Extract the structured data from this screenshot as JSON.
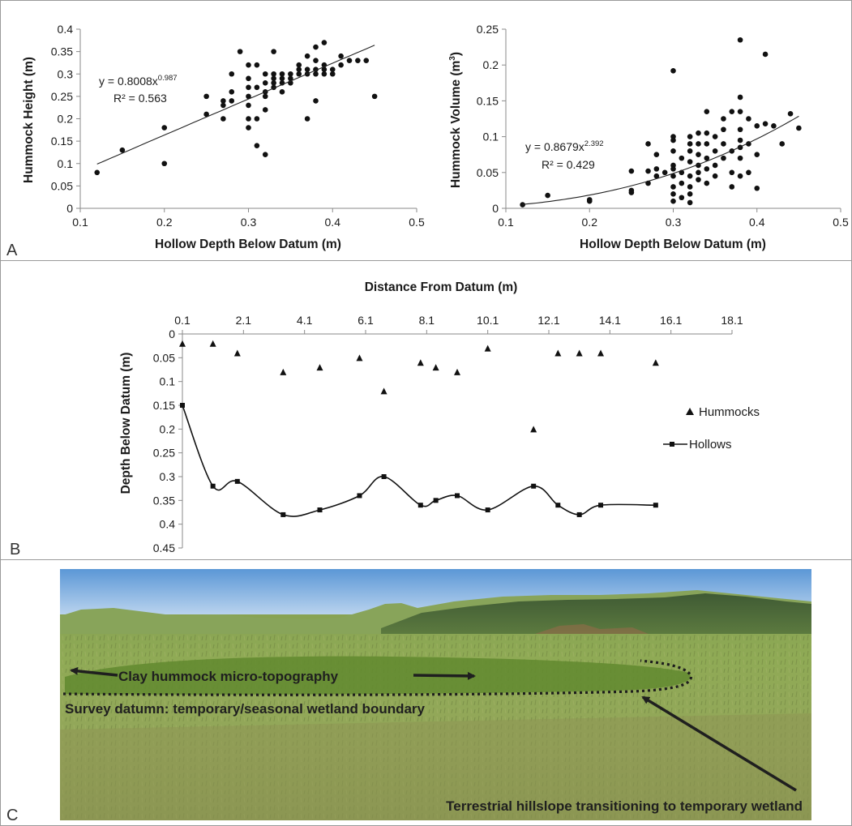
{
  "panels": {
    "a_label": "A",
    "b_label": "B",
    "c_label": "C"
  },
  "chart_data": [
    {
      "type": "scatter",
      "panel": "A",
      "xlabel": "Hollow Depth Below Datum (m)",
      "ylabel": "Hummock Height (m)",
      "xlim": [
        0.1,
        0.5
      ],
      "ylim": [
        0,
        0.4
      ],
      "xticks": [
        "0.1",
        "0.2",
        "0.3",
        "0.4",
        "0.5"
      ],
      "yticks": [
        "0",
        "0.05",
        "0.1",
        "0.15",
        "0.2",
        "0.25",
        "0.3",
        "0.35",
        "0.4"
      ],
      "trendline": {
        "a": 0.8008,
        "b": 0.987,
        "equation_lhs": "y = 0.8008x",
        "equation_exp": "0.987",
        "r2_text": "R² = 0.563"
      },
      "points": [
        [
          0.12,
          0.08
        ],
        [
          0.15,
          0.13
        ],
        [
          0.2,
          0.18
        ],
        [
          0.2,
          0.1
        ],
        [
          0.25,
          0.25
        ],
        [
          0.25,
          0.21
        ],
        [
          0.27,
          0.24
        ],
        [
          0.27,
          0.23
        ],
        [
          0.27,
          0.2
        ],
        [
          0.28,
          0.3
        ],
        [
          0.28,
          0.26
        ],
        [
          0.28,
          0.24
        ],
        [
          0.29,
          0.35
        ],
        [
          0.3,
          0.32
        ],
        [
          0.3,
          0.29
        ],
        [
          0.3,
          0.27
        ],
        [
          0.3,
          0.25
        ],
        [
          0.3,
          0.23
        ],
        [
          0.3,
          0.2
        ],
        [
          0.3,
          0.18
        ],
        [
          0.31,
          0.32
        ],
        [
          0.31,
          0.27
        ],
        [
          0.31,
          0.2
        ],
        [
          0.31,
          0.14
        ],
        [
          0.32,
          0.3
        ],
        [
          0.32,
          0.28
        ],
        [
          0.32,
          0.26
        ],
        [
          0.32,
          0.25
        ],
        [
          0.32,
          0.22
        ],
        [
          0.32,
          0.12
        ],
        [
          0.33,
          0.35
        ],
        [
          0.33,
          0.3
        ],
        [
          0.33,
          0.29
        ],
        [
          0.33,
          0.28
        ],
        [
          0.33,
          0.27
        ],
        [
          0.34,
          0.3
        ],
        [
          0.34,
          0.29
        ],
        [
          0.34,
          0.28
        ],
        [
          0.34,
          0.26
        ],
        [
          0.35,
          0.3
        ],
        [
          0.35,
          0.29
        ],
        [
          0.35,
          0.28
        ],
        [
          0.36,
          0.32
        ],
        [
          0.36,
          0.31
        ],
        [
          0.36,
          0.3
        ],
        [
          0.37,
          0.34
        ],
        [
          0.37,
          0.31
        ],
        [
          0.37,
          0.3
        ],
        [
          0.37,
          0.2
        ],
        [
          0.38,
          0.36
        ],
        [
          0.38,
          0.33
        ],
        [
          0.38,
          0.31
        ],
        [
          0.38,
          0.3
        ],
        [
          0.38,
          0.24
        ],
        [
          0.39,
          0.37
        ],
        [
          0.39,
          0.32
        ],
        [
          0.39,
          0.31
        ],
        [
          0.39,
          0.3
        ],
        [
          0.4,
          0.31
        ],
        [
          0.4,
          0.3
        ],
        [
          0.41,
          0.34
        ],
        [
          0.41,
          0.32
        ],
        [
          0.42,
          0.33
        ],
        [
          0.43,
          0.33
        ],
        [
          0.44,
          0.33
        ],
        [
          0.45,
          0.25
        ]
      ]
    },
    {
      "type": "scatter",
      "panel": "A",
      "xlabel": "Hollow Depth Below Datum (m)",
      "ylabel_main": "Hummock Volume (m",
      "ylabel_sup": "3",
      "ylabel_end": ")",
      "xlim": [
        0.1,
        0.5
      ],
      "ylim": [
        0,
        0.25
      ],
      "xticks": [
        "0.1",
        "0.2",
        "0.3",
        "0.4",
        "0.5"
      ],
      "yticks": [
        "0",
        "0.05",
        "0.1",
        "0.15",
        "0.2",
        "0.25"
      ],
      "trendline": {
        "a": 0.8679,
        "b": 2.392,
        "equation_lhs": "y = 0.8679x",
        "equation_exp": "2.392",
        "r2_text": "R² = 0.429"
      },
      "points": [
        [
          0.12,
          0.005
        ],
        [
          0.15,
          0.018
        ],
        [
          0.2,
          0.012
        ],
        [
          0.2,
          0.01
        ],
        [
          0.25,
          0.052
        ],
        [
          0.25,
          0.025
        ],
        [
          0.25,
          0.022
        ],
        [
          0.27,
          0.09
        ],
        [
          0.27,
          0.052
        ],
        [
          0.27,
          0.035
        ],
        [
          0.28,
          0.075
        ],
        [
          0.28,
          0.055
        ],
        [
          0.28,
          0.045
        ],
        [
          0.29,
          0.05
        ],
        [
          0.3,
          0.192
        ],
        [
          0.3,
          0.1
        ],
        [
          0.3,
          0.095
        ],
        [
          0.3,
          0.08
        ],
        [
          0.3,
          0.06
        ],
        [
          0.3,
          0.055
        ],
        [
          0.3,
          0.045
        ],
        [
          0.3,
          0.03
        ],
        [
          0.3,
          0.02
        ],
        [
          0.3,
          0.01
        ],
        [
          0.31,
          0.07
        ],
        [
          0.31,
          0.05
        ],
        [
          0.31,
          0.035
        ],
        [
          0.31,
          0.015
        ],
        [
          0.32,
          0.1
        ],
        [
          0.32,
          0.09
        ],
        [
          0.32,
          0.08
        ],
        [
          0.32,
          0.065
        ],
        [
          0.32,
          0.045
        ],
        [
          0.32,
          0.03
        ],
        [
          0.32,
          0.02
        ],
        [
          0.32,
          0.008
        ],
        [
          0.33,
          0.105
        ],
        [
          0.33,
          0.09
        ],
        [
          0.33,
          0.075
        ],
        [
          0.33,
          0.06
        ],
        [
          0.33,
          0.05
        ],
        [
          0.33,
          0.04
        ],
        [
          0.34,
          0.135
        ],
        [
          0.34,
          0.105
        ],
        [
          0.34,
          0.09
        ],
        [
          0.34,
          0.07
        ],
        [
          0.34,
          0.055
        ],
        [
          0.34,
          0.035
        ],
        [
          0.35,
          0.1
        ],
        [
          0.35,
          0.08
        ],
        [
          0.35,
          0.06
        ],
        [
          0.35,
          0.045
        ],
        [
          0.36,
          0.125
        ],
        [
          0.36,
          0.11
        ],
        [
          0.36,
          0.09
        ],
        [
          0.36,
          0.07
        ],
        [
          0.37,
          0.135
        ],
        [
          0.37,
          0.08
        ],
        [
          0.37,
          0.05
        ],
        [
          0.37,
          0.03
        ],
        [
          0.38,
          0.235
        ],
        [
          0.38,
          0.155
        ],
        [
          0.38,
          0.135
        ],
        [
          0.38,
          0.11
        ],
        [
          0.38,
          0.095
        ],
        [
          0.38,
          0.085
        ],
        [
          0.38,
          0.07
        ],
        [
          0.38,
          0.045
        ],
        [
          0.39,
          0.125
        ],
        [
          0.39,
          0.09
        ],
        [
          0.39,
          0.05
        ],
        [
          0.4,
          0.115
        ],
        [
          0.4,
          0.075
        ],
        [
          0.4,
          0.028
        ],
        [
          0.41,
          0.215
        ],
        [
          0.41,
          0.118
        ],
        [
          0.42,
          0.115
        ],
        [
          0.43,
          0.09
        ],
        [
          0.44,
          0.132
        ],
        [
          0.45,
          0.112
        ]
      ]
    },
    {
      "type": "line",
      "panel": "B",
      "xlabel": "Distance From Datum (m)",
      "ylabel": "Depth Below Datum (m)",
      "xlim": [
        0.1,
        18.1
      ],
      "ylim": [
        0,
        0.45
      ],
      "y_inverted": true,
      "x_axis_position": "top",
      "xticks": [
        "0.1",
        "2.1",
        "4.1",
        "6.1",
        "8.1",
        "10.1",
        "12.1",
        "14.1",
        "16.1",
        "18.1"
      ],
      "yticks": [
        "0",
        "0.05",
        "0.1",
        "0.15",
        "0.2",
        "0.25",
        "0.3",
        "0.35",
        "0.4",
        "0.45"
      ],
      "legend_position": "right",
      "series": [
        {
          "name": "Hummocks",
          "marker": "triangle",
          "line": false,
          "points": [
            [
              0.1,
              0.02
            ],
            [
              1.1,
              0.02
            ],
            [
              1.9,
              0.04
            ],
            [
              3.4,
              0.08
            ],
            [
              4.6,
              0.07
            ],
            [
              5.9,
              0.05
            ],
            [
              6.7,
              0.12
            ],
            [
              7.9,
              0.06
            ],
            [
              8.4,
              0.07
            ],
            [
              9.1,
              0.08
            ],
            [
              10.1,
              0.03
            ],
            [
              11.6,
              0.2
            ],
            [
              12.4,
              0.04
            ],
            [
              13.1,
              0.04
            ],
            [
              13.8,
              0.04
            ],
            [
              15.6,
              0.06
            ]
          ]
        },
        {
          "name": "Hollows",
          "marker": "square",
          "line": true,
          "points": [
            [
              0.1,
              0.15
            ],
            [
              1.1,
              0.32
            ],
            [
              1.9,
              0.31
            ],
            [
              3.4,
              0.38
            ],
            [
              4.6,
              0.37
            ],
            [
              5.9,
              0.34
            ],
            [
              6.7,
              0.3
            ],
            [
              7.9,
              0.36
            ],
            [
              8.4,
              0.35
            ],
            [
              9.1,
              0.34
            ],
            [
              10.1,
              0.37
            ],
            [
              11.6,
              0.32
            ],
            [
              12.4,
              0.36
            ],
            [
              13.1,
              0.38
            ],
            [
              13.8,
              0.36
            ],
            [
              15.6,
              0.36
            ]
          ]
        }
      ]
    }
  ],
  "photo": {
    "annotation_1": "Clay hummock micro-topography",
    "annotation_2": "Survey datumn: temporary/seasonal wetland boundary",
    "annotation_3": "Terrestrial hillslope transitioning to temporary wetland"
  }
}
